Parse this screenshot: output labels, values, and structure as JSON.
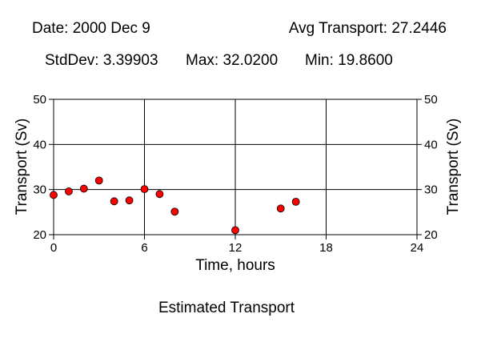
{
  "stats": {
    "date": "Date: 2000 Dec 9",
    "avg": "Avg Transport: 27.2446",
    "stddev": "StdDev: 3.39903",
    "max": "Max: 32.0200",
    "min": "Min: 19.8600"
  },
  "caption": "Estimated Transport",
  "chart_data": {
    "type": "scatter",
    "title": "",
    "xlabel": "Time, hours",
    "ylabel": "Transport (Sv)",
    "ylabel_right": "Transport (Sv)",
    "xlim": [
      0,
      24
    ],
    "ylim": [
      20,
      50
    ],
    "xticks": [
      0,
      6,
      12,
      18,
      24
    ],
    "yticks": [
      20,
      30,
      40,
      50
    ],
    "grid": true,
    "marker_color": "#ff0000",
    "points": [
      {
        "x": 0,
        "y": 28.8
      },
      {
        "x": 1,
        "y": 29.6
      },
      {
        "x": 2,
        "y": 30.2
      },
      {
        "x": 3,
        "y": 32.0
      },
      {
        "x": 4,
        "y": 27.4
      },
      {
        "x": 5,
        "y": 27.6
      },
      {
        "x": 6,
        "y": 30.1
      },
      {
        "x": 7,
        "y": 29.0
      },
      {
        "x": 8,
        "y": 25.1
      },
      {
        "x": 12,
        "y": 21.0
      },
      {
        "x": 15,
        "y": 25.8
      },
      {
        "x": 16,
        "y": 27.3
      }
    ]
  }
}
